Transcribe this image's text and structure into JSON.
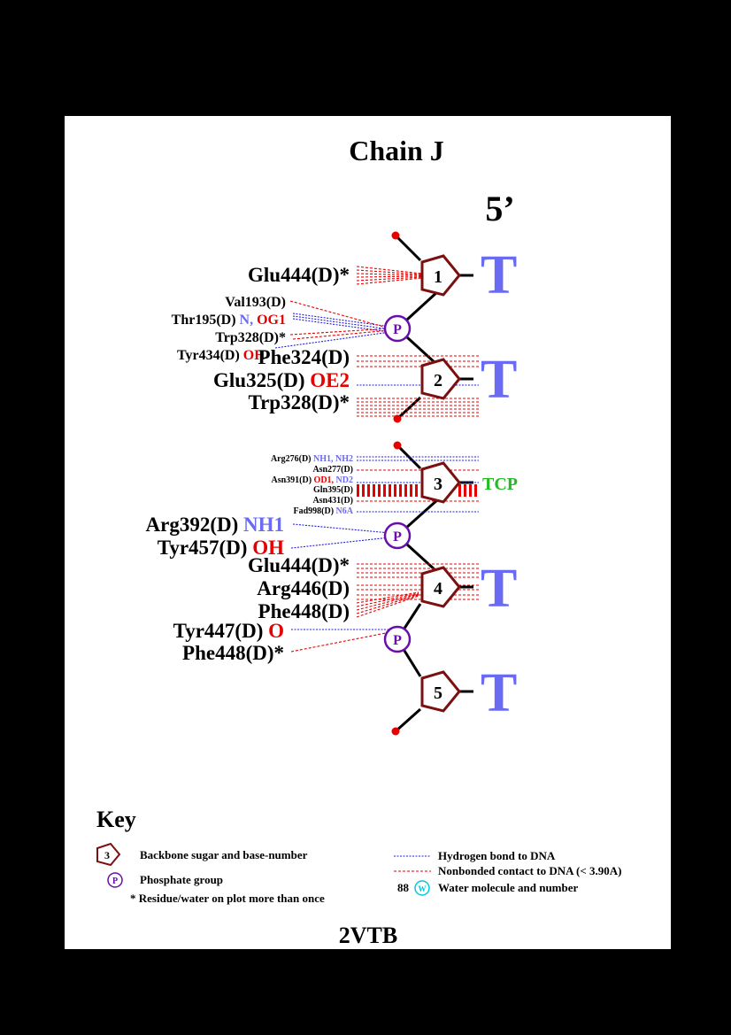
{
  "title": "Chain J",
  "five_prime": "5’",
  "footer": "2VTB",
  "phosphate_label": "P",
  "nucleotides": [
    {
      "number": "1",
      "base": "T"
    },
    {
      "number": "2",
      "base": "T"
    },
    {
      "number": "3",
      "base": "TCP"
    },
    {
      "number": "4",
      "base": "T"
    },
    {
      "number": "5",
      "base": "T"
    }
  ],
  "residues": {
    "glu444_1": "Glu444(D)*",
    "val193": "Val193(D)",
    "thr195": "Thr195(D)",
    "thr195_atoms_blue": "N,",
    "thr195_atoms_red": "OG1",
    "trp328_p": "Trp328(D)*",
    "tyr434": "Tyr434(D)",
    "tyr434_atom": "OH",
    "phe324": "Phe324(D)",
    "glu325": "Glu325(D)",
    "glu325_atom": "OE2",
    "trp328_2": "Trp328(D)*",
    "arg276": "Arg276(D)",
    "arg276_atoms": "NH1, NH2",
    "asn277": "Asn277(D)",
    "asn391": "Asn391(D)",
    "asn391_atom_red": "OD1,",
    "asn391_atom_blue": "ND2",
    "gln395": "Gln395(D)",
    "asn431": "Asn431(D)",
    "fad998": "Fad998(D)",
    "fad998_atom": "N6A",
    "arg392": "Arg392(D)",
    "arg392_atom": "NH1",
    "tyr457": "Tyr457(D)",
    "tyr457_atom": "OH",
    "glu444_4": "Glu444(D)*",
    "arg446": "Arg446(D)",
    "phe448_4": "Phe448(D)",
    "tyr447": "Tyr447(D)",
    "tyr447_atom": "O",
    "phe448_p": "Phe448(D)*"
  },
  "key": {
    "title": "Key",
    "sugar_number": "3",
    "sugar_label": "Backbone sugar and base-number",
    "phosphate_symbol": "P",
    "phosphate_text": "Phosphate group",
    "repeat_note": "* Residue/water on plot more than once",
    "hbond_label": "Hydrogen bond to DNA",
    "nonbonded_label": "Nonbonded contact to DNA (< 3.90A)",
    "water_number": "88",
    "water_symbol": "W",
    "water_label": "Water molecule and number"
  },
  "colors": {
    "sugar": "#7a1010",
    "phosphate": "#6a0dad",
    "hbond": "#2020e0",
    "nonbonded": "#e60000",
    "base_T": "#6a6af2",
    "base_TCP": "#22bb22",
    "water": "#00c8d8"
  }
}
